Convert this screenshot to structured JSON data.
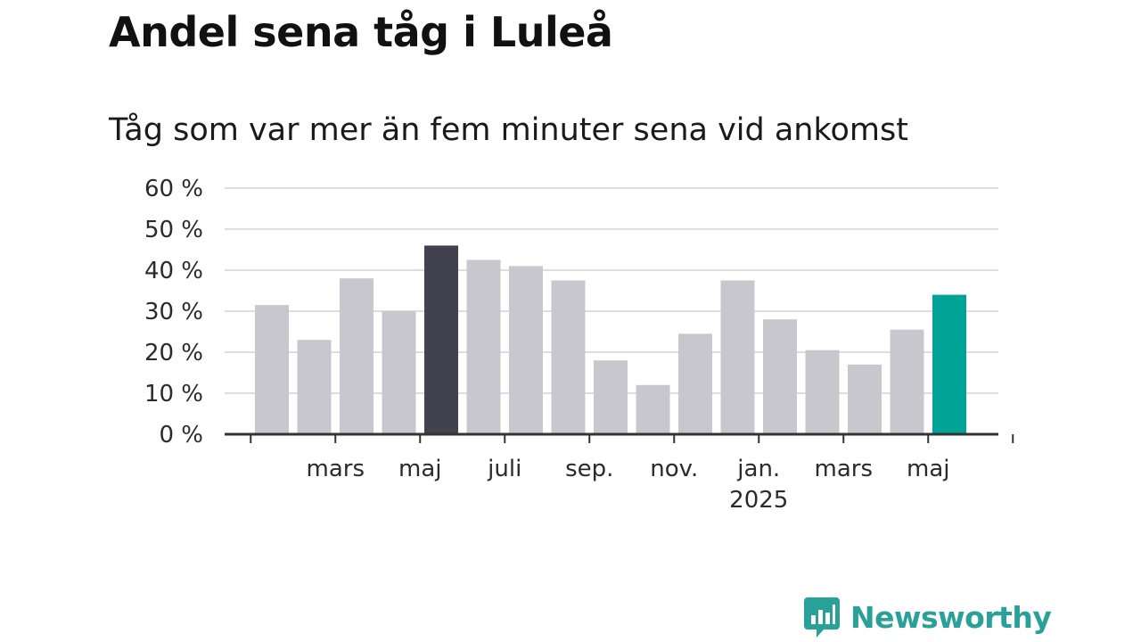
{
  "chart_data": {
    "type": "bar",
    "title": "Andel sena tåg i Luleå",
    "subtitle": "Tåg som var mer än fem minuter sena vid ankomst",
    "values": [
      31.5,
      23,
      38,
      30,
      46,
      42.5,
      41,
      37.5,
      18,
      12,
      24.5,
      37.5,
      28,
      20.5,
      17,
      25.5,
      34
    ],
    "highlight": {
      "4": "dark",
      "16": "accent"
    },
    "x_labels": [
      {
        "index": 1.5,
        "label": "mars",
        "sub": ""
      },
      {
        "index": 3.5,
        "label": "maj",
        "sub": ""
      },
      {
        "index": 5.5,
        "label": "juli",
        "sub": ""
      },
      {
        "index": 7.5,
        "label": "sep.",
        "sub": ""
      },
      {
        "index": 9.5,
        "label": "nov.",
        "sub": ""
      },
      {
        "index": 11.5,
        "label": "jan.",
        "sub": "2025"
      },
      {
        "index": 13.5,
        "label": "mars",
        "sub": ""
      },
      {
        "index": 15.5,
        "label": "maj",
        "sub": ""
      }
    ],
    "y_ticks": [
      "0 %",
      "10 %",
      "20 %",
      "30 %",
      "40 %",
      "50 %",
      "60 %"
    ],
    "ylim": [
      0,
      60
    ],
    "grid": true,
    "colors": {
      "bar": "#c8c7ce",
      "dark": "#42414f",
      "accent": "#00a396",
      "grid": "#dddddd",
      "axis": "#333333"
    }
  },
  "branding": {
    "name": "Newsworthy",
    "icon": "bar-chart-speech-bubble-icon",
    "color": "#2aa198"
  }
}
